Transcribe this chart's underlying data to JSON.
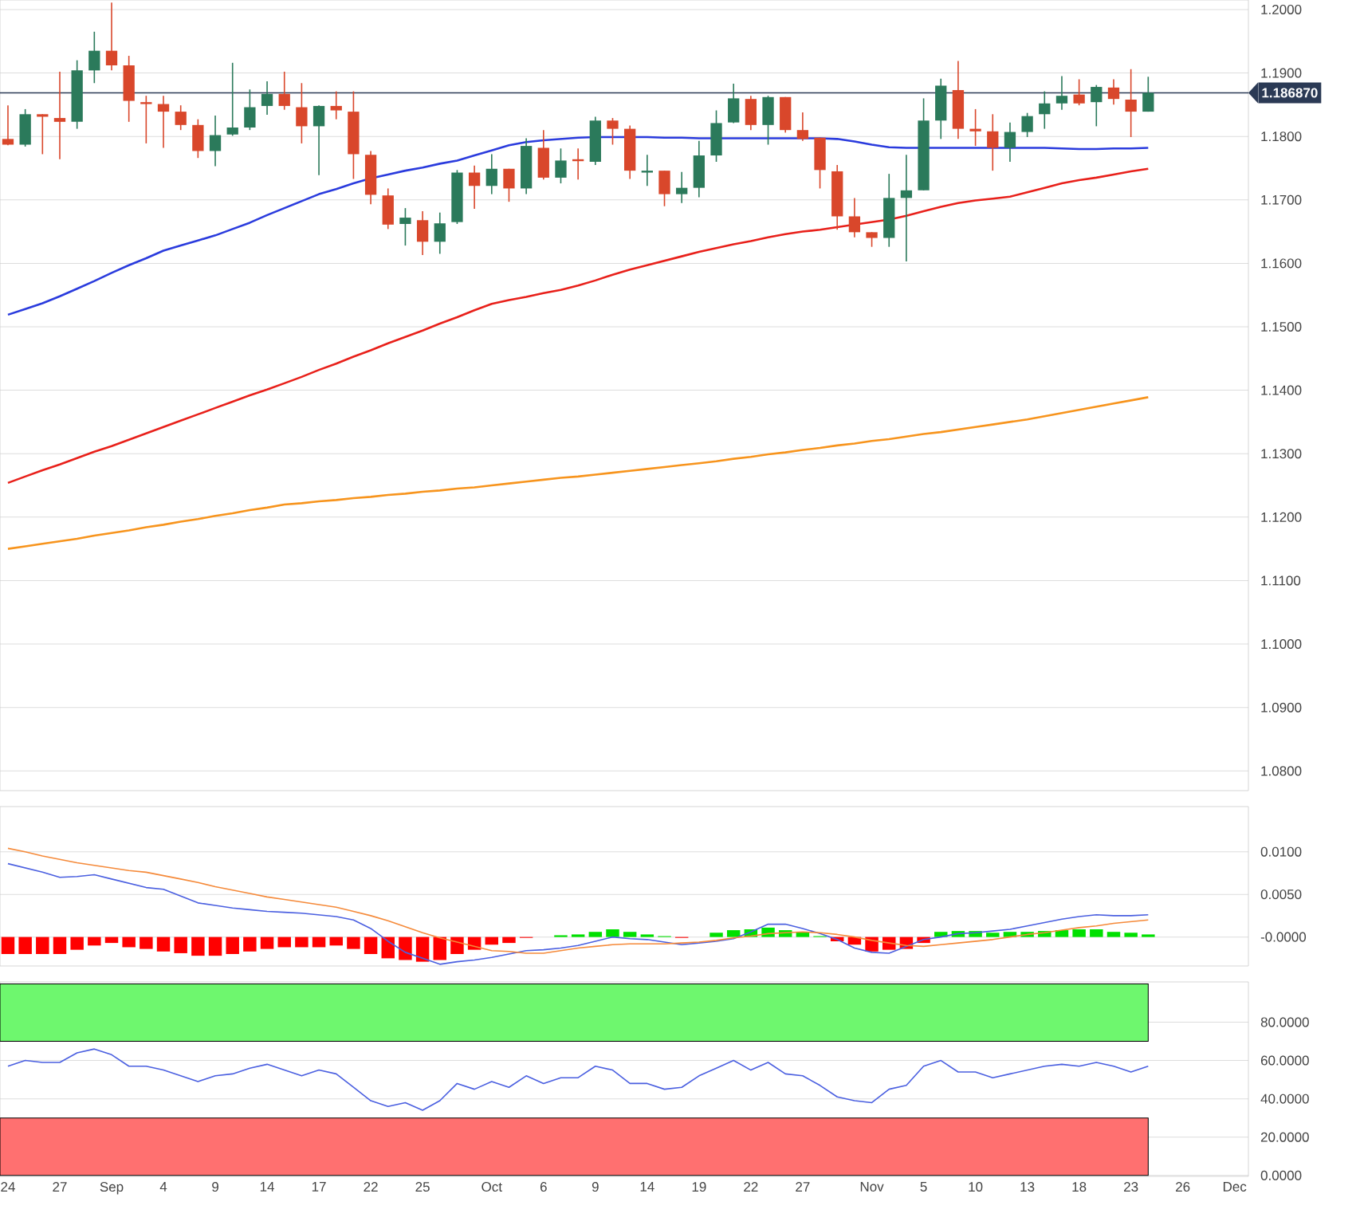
{
  "chart_data": [
    {
      "type": "candlestick",
      "ohlc": [
        [
          1.1796,
          1.1849,
          1.1786,
          1.1787
        ],
        [
          1.1787,
          1.1843,
          1.1784,
          1.1835
        ],
        [
          1.1835,
          1.1835,
          1.1772,
          1.1831
        ],
        [
          1.1829,
          1.1902,
          1.1764,
          1.1823
        ],
        [
          1.1823,
          1.192,
          1.1812,
          1.1904
        ],
        [
          1.1904,
          1.1965,
          1.1884,
          1.1935
        ],
        [
          1.1935,
          1.2011,
          1.1904,
          1.1912
        ],
        [
          1.1912,
          1.1927,
          1.1823,
          1.1856
        ],
        [
          1.1854,
          1.1864,
          1.1789,
          1.1851
        ],
        [
          1.1851,
          1.1864,
          1.1782,
          1.1839
        ],
        [
          1.1839,
          1.1849,
          1.181,
          1.1818
        ],
        [
          1.1818,
          1.1827,
          1.1766,
          1.1777
        ],
        [
          1.1777,
          1.1833,
          1.1753,
          1.1802
        ],
        [
          1.1803,
          1.1916,
          1.1801,
          1.1814
        ],
        [
          1.1814,
          1.1874,
          1.181,
          1.1846
        ],
        [
          1.1848,
          1.1887,
          1.1834,
          1.1867
        ],
        [
          1.1867,
          1.1902,
          1.1842,
          1.1848
        ],
        [
          1.1846,
          1.1884,
          1.1789,
          1.1816
        ],
        [
          1.1816,
          1.1849,
          1.1739,
          1.1848
        ],
        [
          1.1848,
          1.1871,
          1.1827,
          1.1841
        ],
        [
          1.1839,
          1.1871,
          1.1733,
          1.1772
        ],
        [
          1.1771,
          1.1777,
          1.1693,
          1.1708
        ],
        [
          1.1707,
          1.1718,
          1.1654,
          1.1661
        ],
        [
          1.1662,
          1.1687,
          1.1628,
          1.1672
        ],
        [
          1.1668,
          1.1682,
          1.1613,
          1.1634
        ],
        [
          1.1634,
          1.168,
          1.1615,
          1.1663
        ],
        [
          1.1665,
          1.1747,
          1.1662,
          1.1743
        ],
        [
          1.1743,
          1.1754,
          1.1686,
          1.1722
        ],
        [
          1.1722,
          1.1772,
          1.1709,
          1.1749
        ],
        [
          1.1749,
          1.1749,
          1.1697,
          1.1718
        ],
        [
          1.1718,
          1.1797,
          1.1709,
          1.1785
        ],
        [
          1.1782,
          1.181,
          1.1732,
          1.1735
        ],
        [
          1.1735,
          1.1781,
          1.1726,
          1.1762
        ],
        [
          1.1764,
          1.1781,
          1.1732,
          1.1761
        ],
        [
          1.176,
          1.1831,
          1.1755,
          1.1825
        ],
        [
          1.1825,
          1.1829,
          1.1787,
          1.1812
        ],
        [
          1.1812,
          1.1817,
          1.1733,
          1.1746
        ],
        [
          1.1743,
          1.1771,
          1.1722,
          1.1746
        ],
        [
          1.1746,
          1.1746,
          1.169,
          1.1709
        ],
        [
          1.1709,
          1.1744,
          1.1695,
          1.1719
        ],
        [
          1.1719,
          1.1793,
          1.1704,
          1.177
        ],
        [
          1.177,
          1.1841,
          1.176,
          1.1821
        ],
        [
          1.1822,
          1.1883,
          1.1821,
          1.186
        ],
        [
          1.1859,
          1.1864,
          1.181,
          1.1818
        ],
        [
          1.1818,
          1.1864,
          1.1787,
          1.1862
        ],
        [
          1.1862,
          1.1862,
          1.1806,
          1.181
        ],
        [
          1.181,
          1.1838,
          1.1793,
          1.1796
        ],
        [
          1.1798,
          1.1798,
          1.1718,
          1.1747
        ],
        [
          1.1745,
          1.1755,
          1.1653,
          1.1674
        ],
        [
          1.1674,
          1.1703,
          1.1641,
          1.1649
        ],
        [
          1.1649,
          1.1649,
          1.1626,
          1.164
        ],
        [
          1.164,
          1.1741,
          1.1626,
          1.1703
        ],
        [
          1.1703,
          1.1771,
          1.1603,
          1.1715
        ],
        [
          1.1715,
          1.186,
          1.1715,
          1.1825
        ],
        [
          1.1825,
          1.1891,
          1.1796,
          1.188
        ],
        [
          1.1873,
          1.1919,
          1.1796,
          1.1812
        ],
        [
          1.1812,
          1.1843,
          1.1785,
          1.1808
        ],
        [
          1.1808,
          1.1835,
          1.1746,
          1.1782
        ],
        [
          1.1782,
          1.1822,
          1.176,
          1.1807
        ],
        [
          1.1807,
          1.1837,
          1.1799,
          1.1832
        ],
        [
          1.1835,
          1.1871,
          1.1812,
          1.1852
        ],
        [
          1.1852,
          1.1895,
          1.1842,
          1.1864
        ],
        [
          1.1866,
          1.189,
          1.1849,
          1.1852
        ],
        [
          1.1854,
          1.1881,
          1.1816,
          1.1878
        ],
        [
          1.1877,
          1.189,
          1.185,
          1.1859
        ],
        [
          1.1858,
          1.1906,
          1.1799,
          1.1839
        ],
        [
          1.1839,
          1.1894,
          1.1839,
          1.18687
        ],
        null,
        null,
        null,
        null,
        null
      ],
      "series": [
        {
          "type": "line",
          "color": "#2a3bdd",
          "values": [
            1.1519,
            1.1528,
            1.1537,
            1.1548,
            1.156,
            1.1572,
            1.1585,
            1.1597,
            1.1608,
            1.162,
            1.1628,
            1.1636,
            1.1644,
            1.1654,
            1.1664,
            1.1676,
            1.1687,
            1.1698,
            1.1709,
            1.1717,
            1.1726,
            1.1734,
            1.174,
            1.1746,
            1.1751,
            1.1757,
            1.1762,
            1.177,
            1.1778,
            1.1786,
            1.1791,
            1.1794,
            1.1796,
            1.1798,
            1.1799,
            1.1799,
            1.1799,
            1.1799,
            1.1798,
            1.1798,
            1.1797,
            1.1797,
            1.1797,
            1.1797,
            1.1797,
            1.1797,
            1.1797,
            1.1797,
            1.1796,
            1.1792,
            1.1787,
            1.1783,
            1.1782,
            1.1782,
            1.1782,
            1.1782,
            1.1782,
            1.1782,
            1.1782,
            1.1782,
            1.1782,
            1.1781,
            1.178,
            1.178,
            1.1781,
            1.1781,
            1.1782,
            null,
            null,
            null,
            null,
            null
          ]
        },
        {
          "type": "line",
          "color": "#e8201a",
          "values": [
            1.1254,
            1.1264,
            1.1274,
            1.1283,
            1.1293,
            1.1303,
            1.1312,
            1.1322,
            1.1332,
            1.1342,
            1.1352,
            1.1362,
            1.1372,
            1.1382,
            1.1392,
            1.1401,
            1.1411,
            1.1421,
            1.1432,
            1.1442,
            1.1453,
            1.1463,
            1.1474,
            1.1484,
            1.1494,
            1.1505,
            1.1515,
            1.1526,
            1.1536,
            1.1542,
            1.1547,
            1.1553,
            1.1558,
            1.1565,
            1.1573,
            1.1582,
            1.159,
            1.1597,
            1.1604,
            1.1611,
            1.1618,
            1.1624,
            1.163,
            1.1635,
            1.1641,
            1.1646,
            1.165,
            1.1653,
            1.1657,
            1.1661,
            1.1665,
            1.1669,
            1.1675,
            1.1682,
            1.1689,
            1.1695,
            1.1699,
            1.1702,
            1.1705,
            1.1712,
            1.1719,
            1.1726,
            1.1731,
            1.1735,
            1.174,
            1.1745,
            1.1749,
            null,
            null,
            null,
            null,
            null
          ]
        },
        {
          "type": "line",
          "color": "#f7941d",
          "values": [
            1.115,
            1.1154,
            1.1158,
            1.1162,
            1.1166,
            1.1171,
            1.1175,
            1.1179,
            1.1184,
            1.1188,
            1.1193,
            1.1197,
            1.1202,
            1.1206,
            1.1211,
            1.1215,
            1.122,
            1.1222,
            1.1225,
            1.1227,
            1.123,
            1.1232,
            1.1235,
            1.1237,
            1.124,
            1.1242,
            1.1245,
            1.1247,
            1.125,
            1.1253,
            1.1256,
            1.1259,
            1.1262,
            1.1264,
            1.1267,
            1.127,
            1.1273,
            1.1276,
            1.1279,
            1.1282,
            1.1285,
            1.1288,
            1.1292,
            1.1295,
            1.1299,
            1.1302,
            1.1306,
            1.1309,
            1.1313,
            1.1316,
            1.132,
            1.1323,
            1.1327,
            1.1331,
            1.1334,
            1.1338,
            1.1342,
            1.1346,
            1.135,
            1.1354,
            1.1359,
            1.1364,
            1.1369,
            1.1374,
            1.1379,
            1.1384,
            1.1389,
            null,
            null,
            null,
            null,
            null
          ]
        }
      ],
      "ylim": [
        1.0769,
        1.2015
      ],
      "yticks": [
        {
          "value": 1.08,
          "label": "1.0800"
        },
        {
          "value": 1.09,
          "label": "1.0900"
        },
        {
          "value": 1.1,
          "label": "1.1000"
        },
        {
          "value": 1.11,
          "label": "1.1100"
        },
        {
          "value": 1.12,
          "label": "1.1200"
        },
        {
          "value": 1.13,
          "label": "1.1300"
        },
        {
          "value": 1.14,
          "label": "1.1400"
        },
        {
          "value": 1.15,
          "label": "1.1500"
        },
        {
          "value": 1.16,
          "label": "1.1600"
        },
        {
          "value": 1.17,
          "label": "1.1700"
        },
        {
          "value": 1.18,
          "label": "1.1800"
        },
        {
          "value": 1.19,
          "label": "1.1900"
        },
        {
          "value": 1.2,
          "label": "1.2000"
        }
      ],
      "tick_labels": "y",
      "grid": "y",
      "ref_lines": [
        {
          "axis": "y",
          "value": 1.18687,
          "label": "1.186870",
          "color": "#2b3a55"
        }
      ]
    },
    {
      "type": "line",
      "series": [
        {
          "type": "bar",
          "values": [
            -0.002,
            -0.002,
            -0.002,
            -0.002,
            -0.0015,
            -0.001,
            -0.0007,
            -0.0012,
            -0.0014,
            -0.0017,
            -0.0019,
            -0.0022,
            -0.0022,
            -0.002,
            -0.0017,
            -0.0014,
            -0.0012,
            -0.0012,
            -0.0012,
            -0.001,
            -0.0014,
            -0.002,
            -0.0025,
            -0.0027,
            -0.0029,
            -0.0027,
            -0.002,
            -0.0015,
            -0.0009,
            -0.0007,
            -0.0001,
            0,
            0.0002,
            0.0003,
            0.0006,
            0.0009,
            0.0006,
            0.0003,
            0.0001,
            -0.0001,
            0,
            0.0005,
            0.0008,
            0.0009,
            0.0011,
            0.0008,
            0.0006,
            0.0001,
            -0.0005,
            -0.0009,
            -0.0017,
            -0.0015,
            -0.0014,
            -0.0007,
            0.0006,
            0.0007,
            0.0007,
            0.0005,
            0.0006,
            0.0006,
            0.0007,
            0.0008,
            0.0009,
            0.0009,
            0.0006,
            0.0005,
            0.0003,
            null,
            null,
            null,
            null,
            null
          ],
          "colors": [
            "#ff0000",
            "#ff0000",
            "#ff0000",
            "#ff0000",
            "#ff0000",
            "#ff0000",
            "#ff0000",
            "#ff0000",
            "#ff0000",
            "#ff0000",
            "#ff0000",
            "#ff0000",
            "#ff0000",
            "#ff0000",
            "#ff0000",
            "#ff0000",
            "#ff0000",
            "#ff0000",
            "#ff0000",
            "#ff0000",
            "#ff0000",
            "#ff0000",
            "#ff0000",
            "#ff0000",
            "#ff0000",
            "#ff0000",
            "#ff0000",
            "#ff0000",
            "#ff0000",
            "#ff0000",
            "#ff0000",
            "#ff0000",
            "#00e000",
            "#00e000",
            "#00e000",
            "#00e000",
            "#00e000",
            "#00e000",
            "#00e000",
            "#ff0000",
            "#ff0000",
            "#00e000",
            "#00e000",
            "#00e000",
            "#00e000",
            "#00e000",
            "#00e000",
            "#00e000",
            "#ff0000",
            "#ff0000",
            "#ff0000",
            "#ff0000",
            "#ff0000",
            "#ff0000",
            "#00e000",
            "#00e000",
            "#00e000",
            "#00e000",
            "#00e000",
            "#00e000",
            "#00e000",
            "#00e000",
            "#00e000",
            "#00e000",
            "#00e000",
            "#00e000",
            "#00e000",
            null,
            null,
            null,
            null,
            null
          ]
        },
        {
          "type": "line",
          "color": "#4a5fe0",
          "values": [
            0.0086,
            0.0081,
            0.0076,
            0.007,
            0.0071,
            0.0073,
            0.0068,
            0.0063,
            0.0058,
            0.0056,
            0.0048,
            0.004,
            0.0037,
            0.0034,
            0.0032,
            0.003,
            0.0029,
            0.0028,
            0.0026,
            0.0024,
            0.002,
            0.001,
            -0.0005,
            -0.0018,
            -0.0025,
            -0.0032,
            -0.0029,
            -0.0027,
            -0.0024,
            -0.002,
            -0.0016,
            -0.0015,
            -0.0013,
            -0.001,
            -0.0005,
            0,
            -0.0002,
            -0.0003,
            -0.0006,
            -0.0009,
            -0.0007,
            -0.0005,
            -0.0002,
            0.0006,
            0.0015,
            0.0015,
            0.001,
            0.0004,
            -0.0003,
            -0.0013,
            -0.0018,
            -0.0019,
            -0.0011,
            -0.0003,
            0,
            0.0004,
            0.0005,
            0.0007,
            0.0009,
            0.0013,
            0.0017,
            0.0021,
            0.0024,
            0.0026,
            0.0025,
            0.0025,
            0.0026,
            null,
            null,
            null,
            null,
            null
          ]
        },
        {
          "type": "line",
          "color": "#f58a3a",
          "values": [
            0.0104,
            0.01,
            0.0095,
            0.0091,
            0.0087,
            0.0084,
            0.0081,
            0.0078,
            0.0076,
            0.0072,
            0.0068,
            0.0064,
            0.0059,
            0.0055,
            0.0051,
            0.0047,
            0.0044,
            0.0041,
            0.0038,
            0.0035,
            0.003,
            0.0025,
            0.0019,
            0.0012,
            0.0005,
            -0.0001,
            -0.0006,
            -0.0011,
            -0.0016,
            -0.0017,
            -0.0019,
            -0.0019,
            -0.0016,
            -0.0013,
            -0.0011,
            -0.0009,
            -0.0008,
            -0.0008,
            -0.0008,
            -0.0007,
            -0.0006,
            -0.0004,
            -0.0001,
            0.0001,
            0.0004,
            0.0005,
            0.0006,
            0.0005,
            0.0003,
            0,
            -0.0004,
            -0.0007,
            -0.001,
            -0.0011,
            -0.0009,
            -0.0007,
            -0.0005,
            -0.0003,
            0,
            0.0003,
            0.0005,
            0.0008,
            0.0011,
            0.0013,
            0.0016,
            0.0018,
            0.002,
            null,
            null,
            null,
            null,
            null
          ]
        }
      ],
      "ylim": [
        -0.0034,
        0.0153
      ],
      "yticks": [
        {
          "value": 0,
          "label": "-0.0000"
        },
        {
          "value": 0.005,
          "label": "0.0050"
        },
        {
          "value": 0.01,
          "label": "0.0100"
        }
      ],
      "tick_labels": "y",
      "grid": "y"
    },
    {
      "type": "line",
      "categories": [
        "24",
        null,
        null,
        "27",
        null,
        null,
        "Sep",
        null,
        null,
        "4",
        null,
        null,
        "9",
        null,
        null,
        "14",
        null,
        null,
        "17",
        null,
        null,
        "22",
        null,
        null,
        "25",
        null,
        null,
        null,
        "Oct",
        null,
        null,
        "6",
        null,
        null,
        "9",
        null,
        null,
        "14",
        null,
        null,
        "19",
        null,
        null,
        "22",
        null,
        null,
        "27",
        null,
        null,
        null,
        "Nov",
        null,
        null,
        "5",
        null,
        null,
        "10",
        null,
        null,
        "13",
        null,
        null,
        "18",
        null,
        null,
        "23",
        null,
        null,
        "26",
        null,
        null,
        "Dec"
      ],
      "series": [
        {
          "type": "line",
          "color": "#4a5fe0",
          "values": [
            57,
            60,
            59,
            59,
            64,
            66,
            63,
            57,
            57,
            55,
            52,
            49,
            52,
            53,
            56,
            58,
            55,
            52,
            55,
            53,
            46,
            39,
            36,
            38,
            34,
            39,
            48,
            45,
            49,
            46,
            52,
            48,
            51,
            51,
            57,
            55,
            48,
            48,
            45,
            46,
            52,
            56,
            60,
            55,
            59,
            53,
            52,
            47,
            41,
            39,
            38,
            45,
            47,
            57,
            60,
            54,
            54,
            51,
            53,
            55,
            57,
            58,
            57,
            59,
            57,
            54,
            57,
            null,
            null,
            null,
            null,
            null
          ]
        }
      ],
      "ylim": [
        -0.5,
        101
      ],
      "yticks": [
        {
          "value": 0,
          "label": "0.0000"
        },
        {
          "value": 20,
          "label": "20.0000"
        },
        {
          "value": 40,
          "label": "40.0000"
        },
        {
          "value": 60,
          "label": "60.0000"
        },
        {
          "value": 80,
          "label": "80.0000"
        }
      ],
      "grid": "y",
      "bands": [
        {
          "axis": "y",
          "from": 70,
          "to": 100,
          "color": "#6ef76e"
        },
        {
          "axis": "y",
          "from": 0,
          "to": 30,
          "color": "#ff7070"
        }
      ]
    }
  ]
}
